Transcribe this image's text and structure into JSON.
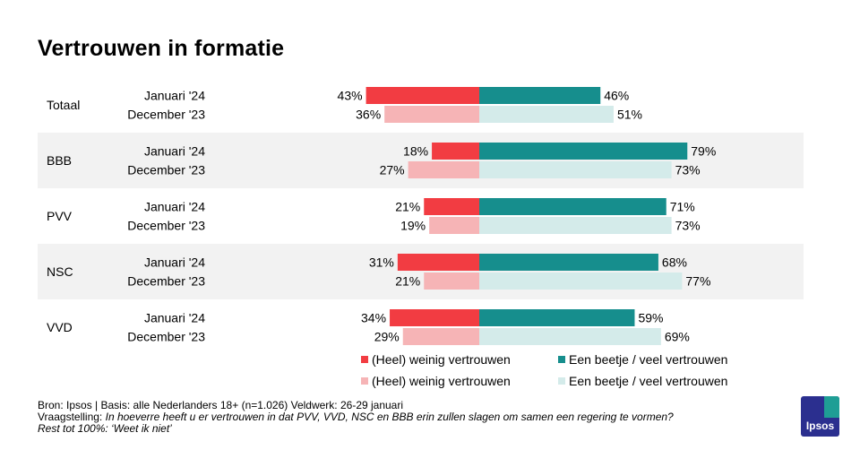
{
  "title": "Vertrouwen in formatie",
  "colors": {
    "low_current": "#f23c42",
    "low_previous": "#f6b4b6",
    "high_current": "#168e8d",
    "high_previous": "#d4ebea",
    "band": "#f2f2f2"
  },
  "chart_data": {
    "type": "bar",
    "orientation": "horizontal-diverging",
    "groups": [
      "Totaal",
      "BBB",
      "PVV",
      "NSC",
      "VVD"
    ],
    "periods": [
      "Januari '24",
      "December '23"
    ],
    "series": [
      {
        "name": "(Heel) weinig vertrouwen",
        "period": "Januari '24",
        "values": [
          43,
          18,
          21,
          31,
          34
        ]
      },
      {
        "name": "(Heel) weinig vertrouwen",
        "period": "December '23",
        "values": [
          36,
          27,
          19,
          21,
          29
        ]
      },
      {
        "name": "Een beetje / veel vertrouwen",
        "period": "Januari '24",
        "values": [
          46,
          79,
          71,
          68,
          59
        ]
      },
      {
        "name": "Een beetje / veel vertrouwen",
        "period": "December '23",
        "values": [
          51,
          73,
          73,
          77,
          69
        ]
      }
    ],
    "unit": "%"
  },
  "legend": {
    "low_current": "(Heel) weinig vertrouwen",
    "high_current": "Een beetje / veel vertrouwen",
    "low_previous": "(Heel) weinig vertrouwen",
    "high_previous": "Een beetje / veel vertrouwen"
  },
  "footer": {
    "source": "Bron: Ipsos | Basis: alle Nederlanders  18+ (n=1.026) Veldwerk: 26-29  januari",
    "question_label": "Vraagstelling: ",
    "question": "In hoeverre  heeft u er vertrouwen  in dat PVV, VVD, NSC en BBB erin zullen slagen om samen een regering  te vormen?",
    "rest": "Rest tot 100%: ‘Weet ik niet’"
  },
  "logo": {
    "text": "Ipsos"
  }
}
